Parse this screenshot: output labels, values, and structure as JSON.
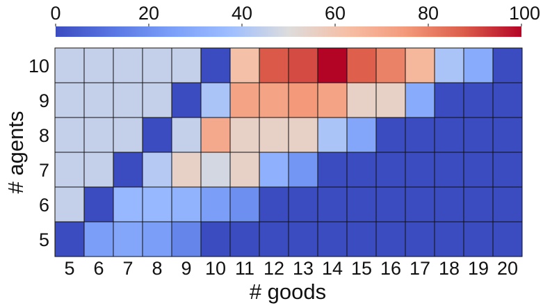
{
  "chart_data": {
    "type": "heatmap",
    "xlabel": "# goods",
    "ylabel": "# agents",
    "x_categories": [
      "5",
      "6",
      "7",
      "8",
      "9",
      "10",
      "11",
      "12",
      "13",
      "14",
      "15",
      "16",
      "17",
      "18",
      "19",
      "20"
    ],
    "y_categories": [
      "10",
      "9",
      "8",
      "7",
      "6",
      "5"
    ],
    "colorbar": {
      "colormap": "coolwarm",
      "min": 0,
      "max": 100,
      "ticks": [
        "0",
        "20",
        "40",
        "60",
        "80",
        "100"
      ],
      "position": "top"
    },
    "values": [
      [
        45,
        45,
        45,
        45,
        45,
        0,
        62,
        88,
        90,
        100,
        87,
        80,
        65,
        40,
        30,
        0
      ],
      [
        45,
        45,
        45,
        45,
        0,
        40,
        72,
        72,
        75,
        72,
        55,
        55,
        30,
        0,
        0,
        0
      ],
      [
        45,
        45,
        45,
        0,
        45,
        70,
        55,
        55,
        55,
        40,
        28,
        0,
        0,
        0,
        0,
        0
      ],
      [
        45,
        45,
        0,
        42,
        55,
        48,
        55,
        32,
        22,
        0,
        0,
        0,
        0,
        0,
        0,
        0
      ],
      [
        45,
        0,
        35,
        35,
        33,
        25,
        20,
        0,
        0,
        0,
        0,
        0,
        0,
        0,
        0,
        0
      ],
      [
        0,
        25,
        28,
        25,
        17,
        0,
        0,
        0,
        0,
        0,
        0,
        0,
        0,
        0,
        0,
        0
      ]
    ]
  }
}
